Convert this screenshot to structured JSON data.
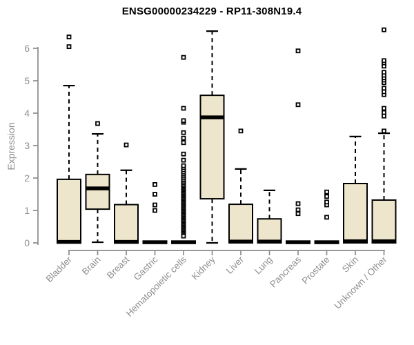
{
  "chart": {
    "title": "ENSG00000234229 - RP11-308N19.4",
    "y_axis_label": "Expression"
  },
  "chart_data": {
    "type": "boxplot",
    "title": "ENSG00000234229 - RP11-308N19.4",
    "xlabel": "",
    "ylabel": "Expression",
    "ylim": [
      0,
      6.6
    ],
    "y_ticks": [
      0,
      1,
      2,
      3,
      4,
      5,
      6
    ],
    "grid": false,
    "legend": "none",
    "box_fill": "#EDE6CC",
    "box_stroke": "#000000",
    "axis_color": "#8A8A8A",
    "tick_label_color": "#8F8F8F",
    "categories": [
      "Bladder",
      "Brain",
      "Breast",
      "Gastric",
      "Hematopoietic cells",
      "Kidney",
      "Liver",
      "Lung",
      "Pancreas",
      "Prostate",
      "Skin",
      "Unknown / Other"
    ],
    "series": [
      {
        "name": "Bladder",
        "low": 0,
        "q1": 0,
        "median": 0.03,
        "q3": 1.96,
        "high": 4.85,
        "outliers": [
          6.05,
          6.35
        ]
      },
      {
        "name": "Brain",
        "low": 0.02,
        "q1": 1.04,
        "median": 1.68,
        "q3": 2.11,
        "high": 3.36,
        "outliers": [
          3.68
        ]
      },
      {
        "name": "Breast",
        "low": 0,
        "q1": 0,
        "median": 0.03,
        "q3": 1.18,
        "high": 2.24,
        "outliers": [
          3.02
        ]
      },
      {
        "name": "Gastric",
        "low": 0,
        "q1": 0,
        "median": 0.02,
        "q3": 0.02,
        "high": 0.02,
        "outliers": [
          1.0,
          1.17,
          1.5,
          1.8
        ]
      },
      {
        "name": "Hematopoietic cells",
        "low": 0,
        "q1": 0,
        "median": 0.02,
        "q3": 0.02,
        "high": 0.02,
        "outliers": [
          0.21,
          0.32,
          0.36,
          0.4,
          0.44,
          0.48,
          0.52,
          0.56,
          0.6,
          0.64,
          0.68,
          0.72,
          0.76,
          0.8,
          0.84,
          0.88,
          0.92,
          0.96,
          1.0,
          1.04,
          1.08,
          1.12,
          1.16,
          1.2,
          1.24,
          1.28,
          1.32,
          1.36,
          1.4,
          1.44,
          1.48,
          1.52,
          1.56,
          1.6,
          1.64,
          1.68,
          1.72,
          1.76,
          1.8,
          1.85,
          1.9,
          1.95,
          2.0,
          2.06,
          2.12,
          2.18,
          2.25,
          2.32,
          2.38,
          2.55,
          2.74,
          3.09,
          3.23,
          3.4,
          3.72,
          3.77,
          4.15,
          5.72
        ]
      },
      {
        "name": "Kidney",
        "low": 0,
        "q1": 1.36,
        "median": 3.87,
        "q3": 4.55,
        "high": 6.53,
        "outliers": []
      },
      {
        "name": "Liver",
        "low": 0,
        "q1": 0,
        "median": 0.04,
        "q3": 1.19,
        "high": 2.28,
        "outliers": [
          3.45
        ]
      },
      {
        "name": "Lung",
        "low": 0,
        "q1": 0,
        "median": 0.04,
        "q3": 0.74,
        "high": 1.62,
        "outliers": []
      },
      {
        "name": "Pancreas",
        "low": 0,
        "q1": 0,
        "median": 0.02,
        "q3": 0.02,
        "high": 0.02,
        "outliers": [
          0.9,
          1.02,
          1.21,
          4.26,
          5.92
        ]
      },
      {
        "name": "Prostate",
        "low": 0,
        "q1": 0,
        "median": 0.02,
        "q3": 0.02,
        "high": 0.02,
        "outliers": [
          0.79,
          1.17,
          1.26,
          1.43,
          1.57
        ]
      },
      {
        "name": "Skin",
        "low": 0,
        "q1": 0,
        "median": 0.05,
        "q3": 1.83,
        "high": 3.28,
        "outliers": []
      },
      {
        "name": "Unknown / Other",
        "low": 0,
        "q1": 0,
        "median": 0.05,
        "q3": 1.32,
        "high": 3.38,
        "outliers": [
          3.45,
          3.91,
          4.02,
          4.15,
          4.57,
          4.66,
          4.77,
          4.94,
          5.02,
          5.09,
          5.17,
          5.26,
          5.45,
          5.55,
          5.62,
          6.57
        ]
      }
    ]
  }
}
